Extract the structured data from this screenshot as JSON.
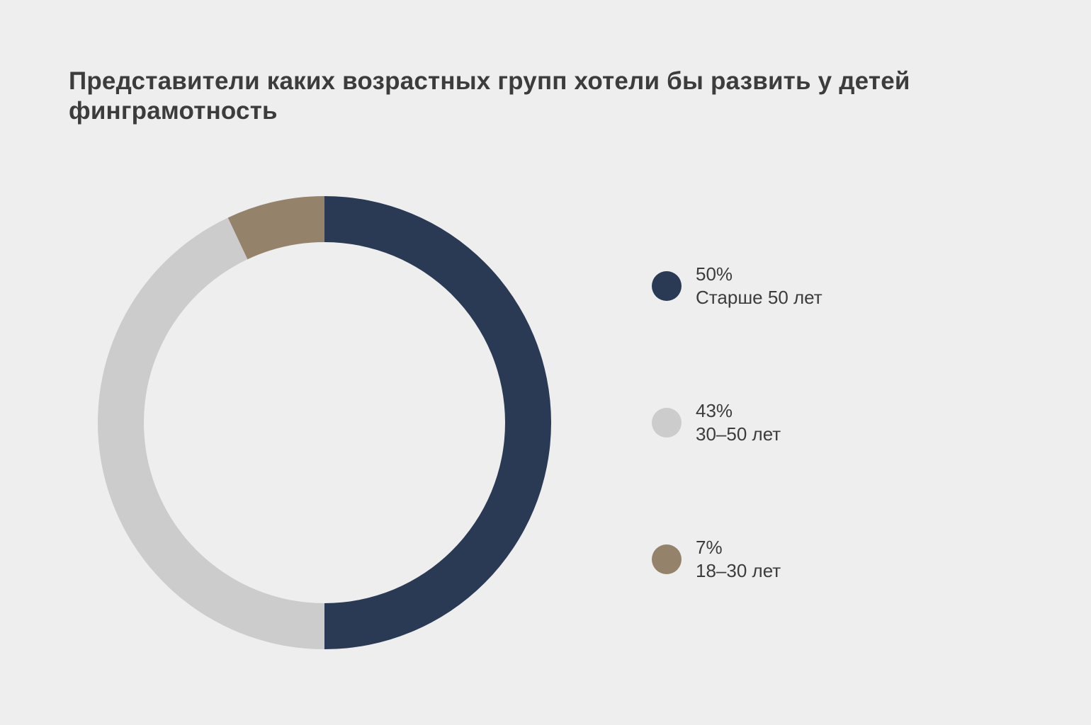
{
  "chart_data": {
    "type": "pie",
    "title": "Представители каких возрастных групп хотели бы развить у детей финграмотность",
    "donut": true,
    "legend_position": "right",
    "slices": [
      {
        "label": "Старше 50 лет",
        "value": 50,
        "value_label": "50%",
        "color": "#2a3a55"
      },
      {
        "label": "30–50 лет",
        "value": 43,
        "value_label": "43%",
        "color": "#cccccc"
      },
      {
        "label": "18–30 лет",
        "value": 7,
        "value_label": "7%",
        "color": "#95826a"
      }
    ]
  }
}
